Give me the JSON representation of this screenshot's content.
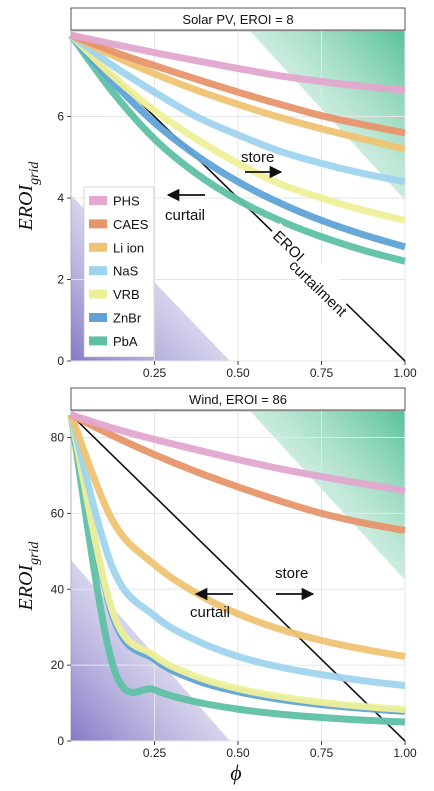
{
  "chart_data": [
    {
      "type": "line",
      "title": "Solar PV, EROI = 8",
      "ylabel_main": "EROI",
      "ylabel_sub": "grid",
      "xlabel": "",
      "xlim": [
        0,
        1
      ],
      "ylim": [
        0,
        8.1
      ],
      "xticks": [
        "0.25",
        "0.50",
        "0.75",
        "1.00"
      ],
      "xtick_values": [
        0.25,
        0.5,
        0.75,
        1.0
      ],
      "yticks": [
        "0",
        "2",
        "4",
        "6"
      ],
      "ytick_values": [
        0,
        2,
        4,
        6
      ],
      "grid": true,
      "x": [
        0,
        0.125,
        0.25,
        0.375,
        0.5,
        0.625,
        0.75,
        0.875,
        1.0
      ],
      "series": [
        {
          "name": "PHS",
          "color": "#e3a7d0",
          "values": [
            8.0,
            7.78,
            7.57,
            7.37,
            7.18,
            7.0,
            6.86,
            6.74,
            6.65
          ]
        },
        {
          "name": "CAES",
          "color": "#e7956a",
          "values": [
            8.0,
            7.6,
            7.25,
            6.92,
            6.6,
            6.3,
            6.02,
            5.8,
            5.6
          ]
        },
        {
          "name": "Li ion",
          "color": "#efc374",
          "values": [
            8.0,
            7.5,
            7.05,
            6.65,
            6.3,
            5.98,
            5.7,
            5.45,
            5.2
          ]
        },
        {
          "name": "NaS",
          "color": "#9fd4ee",
          "values": [
            8.0,
            7.25,
            6.6,
            6.0,
            5.55,
            5.15,
            4.85,
            4.6,
            4.4
          ]
        },
        {
          "name": "VRB",
          "color": "#eef099",
          "values": [
            8.0,
            7.0,
            6.15,
            5.45,
            4.85,
            4.35,
            4.0,
            3.7,
            3.45
          ]
        },
        {
          "name": "ZnBr",
          "color": "#5fa3d6",
          "values": [
            8.0,
            6.85,
            5.85,
            5.05,
            4.4,
            3.88,
            3.45,
            3.1,
            2.8
          ]
        },
        {
          "name": "PbA",
          "color": "#5fc0a4",
          "values": [
            8.0,
            6.6,
            5.45,
            4.6,
            3.95,
            3.45,
            3.05,
            2.72,
            2.45
          ]
        }
      ],
      "annotations": {
        "store": "store",
        "curtail": "curtail",
        "eroi_curtailment_main": "EROI",
        "eroi_curtailment_sub": "curtailment"
      },
      "legend": {
        "placement": "left",
        "entries": [
          "PHS",
          "CAES",
          "Li ion",
          "NaS",
          "VRB",
          "ZnBr",
          "PbA"
        ]
      }
    },
    {
      "type": "line",
      "title": "Wind, EROI = 86",
      "ylabel_main": "EROI",
      "ylabel_sub": "grid",
      "xlabel": "ϕ",
      "xlim": [
        0,
        1
      ],
      "ylim": [
        0,
        87
      ],
      "xticks": [
        "0.25",
        "0.50",
        "0.75",
        "1.00"
      ],
      "xtick_values": [
        0.25,
        0.5,
        0.75,
        1.0
      ],
      "yticks": [
        "0",
        "20",
        "40",
        "60",
        "80"
      ],
      "ytick_values": [
        0,
        20,
        40,
        60,
        80
      ],
      "grid": true,
      "x": [
        0,
        0.125,
        0.25,
        0.375,
        0.5,
        0.625,
        0.75,
        0.875,
        1.0
      ],
      "series": [
        {
          "name": "PHS",
          "color": "#e3a7d0",
          "values": [
            86,
            82.5,
            79.5,
            76.8,
            74.2,
            71.8,
            69.7,
            67.8,
            66.0
          ]
        },
        {
          "name": "CAES",
          "color": "#e7956a",
          "values": [
            86,
            80.5,
            75.5,
            71.0,
            67.0,
            63.3,
            60.0,
            57.5,
            55.5
          ]
        },
        {
          "name": "Li ion",
          "color": "#efc374",
          "values": [
            86,
            58.0,
            46.5,
            39.0,
            33.5,
            29.5,
            26.5,
            24.2,
            22.3
          ]
        },
        {
          "name": "NaS",
          "color": "#9fd4ee",
          "values": [
            86,
            45.5,
            33.0,
            26.5,
            22.3,
            19.5,
            17.5,
            15.9,
            14.6
          ]
        },
        {
          "name": "VRB",
          "color": "#eef099",
          "values": [
            86,
            34.0,
            22.5,
            17.0,
            13.8,
            11.7,
            10.2,
            9.1,
            8.3
          ]
        },
        {
          "name": "ZnBr",
          "color": "#5fa3d6",
          "values": [
            86,
            33.0,
            21.5,
            16.0,
            13.0,
            11.0,
            9.6,
            8.6,
            7.8
          ]
        },
        {
          "name": "PbA",
          "color": "#5fc0a4",
          "values": [
            86,
            20.0,
            13.5,
            10.3,
            8.4,
            7.1,
            6.2,
            5.5,
            5.0
          ]
        }
      ],
      "annotations": {
        "store": "store",
        "curtail": "curtail"
      }
    }
  ]
}
